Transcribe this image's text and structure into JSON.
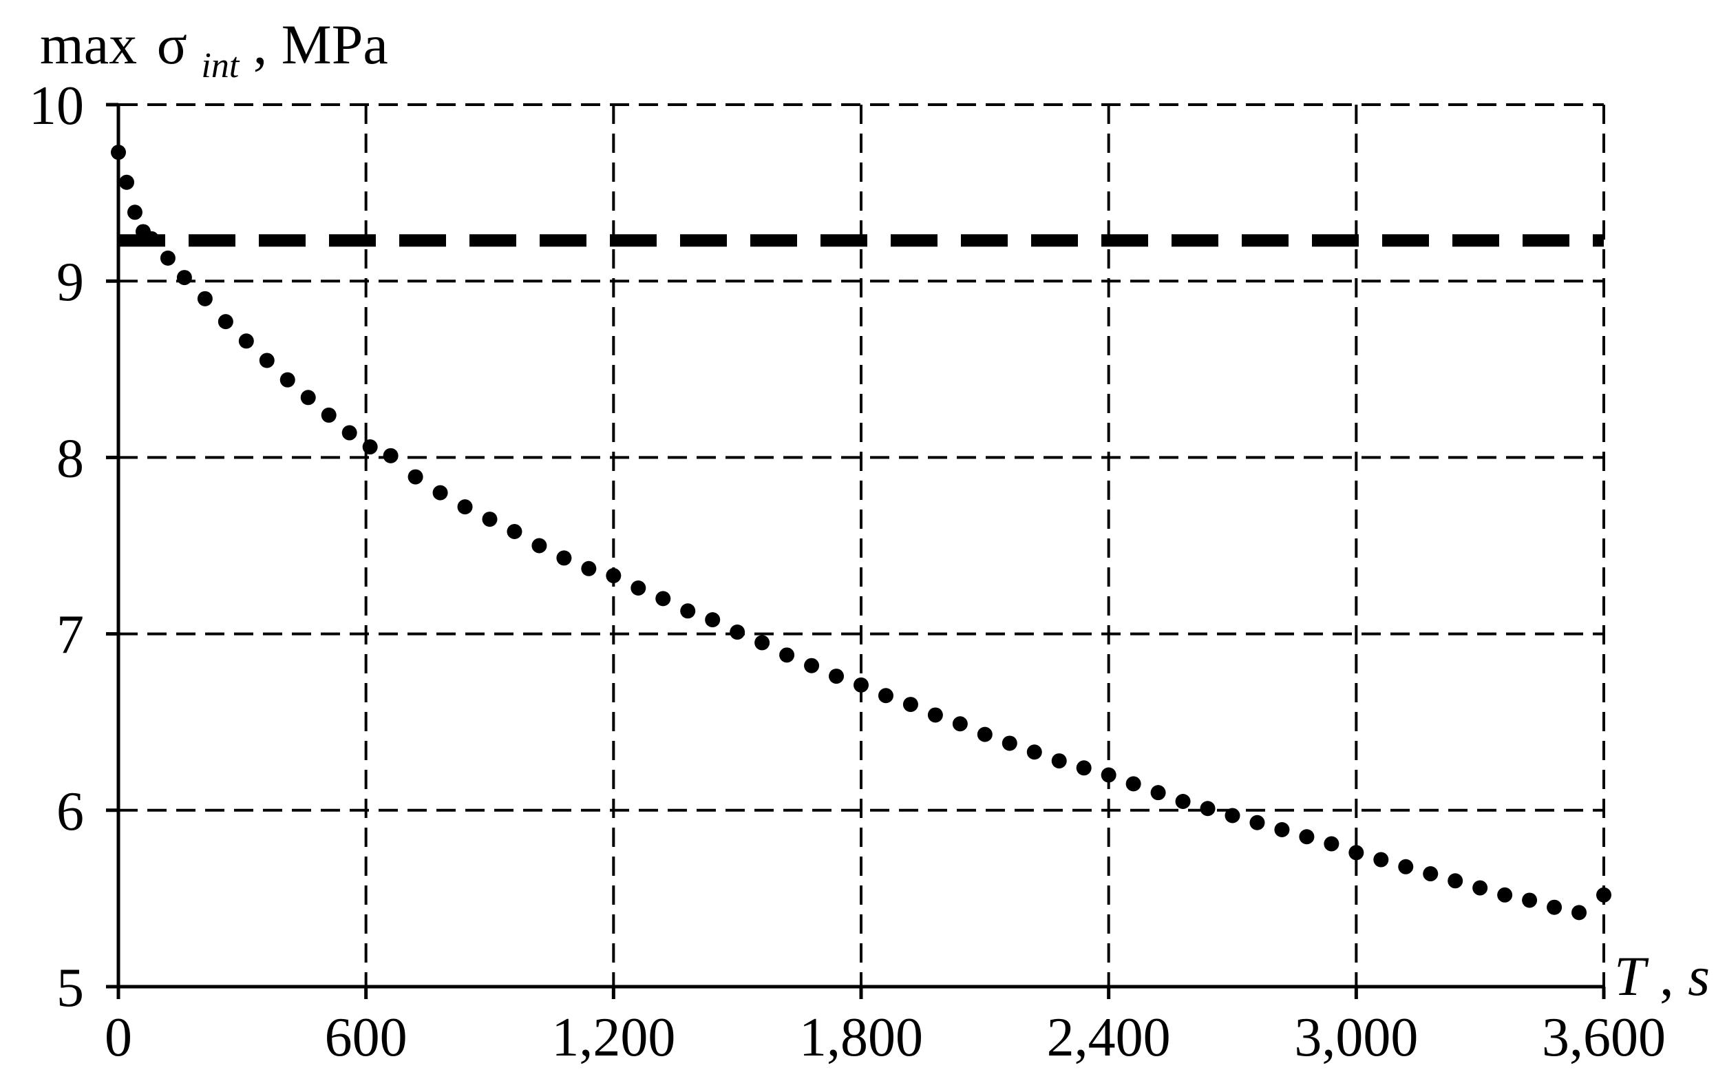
{
  "chart_data": {
    "type": "scatter",
    "title": "",
    "xlabel": {
      "var": "T",
      "sep": ", ",
      "unit": "s"
    },
    "ylabel": {
      "prefix": "max",
      "symbol": "σ",
      "subscript": "int",
      "sep": ", ",
      "unit": "MPa"
    },
    "xlim": [
      0,
      3600
    ],
    "ylim": [
      5,
      10
    ],
    "grid": true,
    "x_ticks": [
      {
        "value": 0,
        "label": "0"
      },
      {
        "value": 600,
        "label": "600"
      },
      {
        "value": 1200,
        "label": "1,200"
      },
      {
        "value": 1800,
        "label": "1,800"
      },
      {
        "value": 2400,
        "label": "2,400"
      },
      {
        "value": 3000,
        "label": "3,000"
      },
      {
        "value": 3600,
        "label": "3,600"
      }
    ],
    "y_ticks": [
      {
        "value": 5,
        "label": "5"
      },
      {
        "value": 6,
        "label": "6"
      },
      {
        "value": 7,
        "label": "7"
      },
      {
        "value": 8,
        "label": "8"
      },
      {
        "value": 9,
        "label": "9"
      },
      {
        "value": 10,
        "label": "10"
      }
    ],
    "series": [
      {
        "style": "dotted",
        "color": "#000000",
        "x": [
          0,
          20,
          40,
          60,
          80,
          120,
          160,
          210,
          260,
          310,
          360,
          410,
          460,
          510,
          560,
          610,
          660,
          720,
          780,
          840,
          900,
          960,
          1020,
          1080,
          1140,
          1200,
          1260,
          1320,
          1380,
          1440,
          1500,
          1560,
          1620,
          1680,
          1740,
          1800,
          1860,
          1920,
          1980,
          2040,
          2100,
          2160,
          2220,
          2280,
          2340,
          2400,
          2460,
          2520,
          2580,
          2640,
          2700,
          2760,
          2820,
          2880,
          2940,
          3000,
          3060,
          3120,
          3180,
          3240,
          3300,
          3360,
          3420,
          3480,
          3540,
          3600
        ],
        "y": [
          9.73,
          9.56,
          9.39,
          9.28,
          9.24,
          9.13,
          9.02,
          8.9,
          8.77,
          8.66,
          8.55,
          8.44,
          8.34,
          8.24,
          8.14,
          8.06,
          8.01,
          7.89,
          7.8,
          7.72,
          7.65,
          7.58,
          7.5,
          7.43,
          7.37,
          7.33,
          7.26,
          7.2,
          7.13,
          7.08,
          7.01,
          6.95,
          6.88,
          6.82,
          6.76,
          6.71,
          6.65,
          6.6,
          6.54,
          6.49,
          6.43,
          6.38,
          6.33,
          6.28,
          6.24,
          6.2,
          6.15,
          6.1,
          6.05,
          6.01,
          5.97,
          5.93,
          5.89,
          5.85,
          5.81,
          5.76,
          5.72,
          5.68,
          5.64,
          5.6,
          5.56,
          5.52,
          5.49,
          5.45,
          5.42,
          5.52
        ]
      },
      {
        "style": "dashed",
        "color": "#000000",
        "x": [
          0,
          3600
        ],
        "y": [
          9.23,
          9.23
        ]
      }
    ]
  }
}
